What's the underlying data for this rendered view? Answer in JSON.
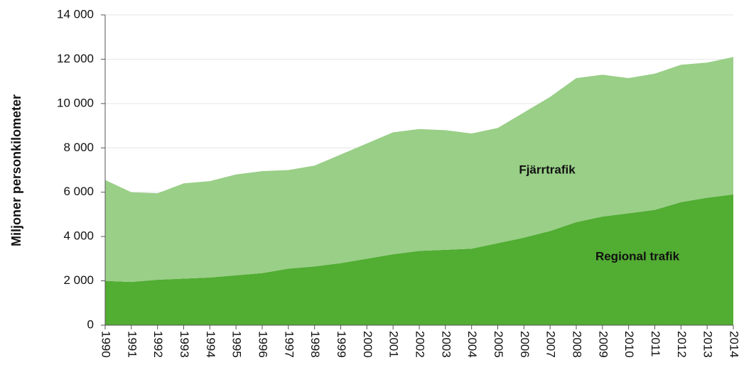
{
  "chart_data": {
    "type": "stacked-area",
    "y_label": "Miljoner personkilometer",
    "categories": [
      "1990",
      "1991",
      "1992",
      "1993",
      "1994",
      "1995",
      "1996",
      "1997",
      "1998",
      "1999",
      "2000",
      "2001",
      "2002",
      "2003",
      "2004",
      "2005",
      "2006",
      "2007",
      "2008",
      "2009",
      "2010",
      "2011",
      "2012",
      "2013",
      "2014"
    ],
    "series": [
      {
        "name": "Regional trafik",
        "color": "#52ad33",
        "values": [
          2000,
          1950,
          2050,
          2100,
          2150,
          2250,
          2350,
          2550,
          2650,
          2800,
          3000,
          3200,
          3350,
          3400,
          3450,
          3700,
          3950,
          4250,
          4650,
          4900,
          5050,
          5200,
          5550,
          5750,
          5900
        ]
      },
      {
        "name": "Fjärrtrafik",
        "color": "#99cf87",
        "values": [
          4550,
          4050,
          3900,
          4300,
          4350,
          4550,
          4600,
          4450,
          4550,
          4900,
          5200,
          5500,
          5500,
          5400,
          5200,
          5200,
          5650,
          6050,
          6500,
          6400,
          6100,
          6150,
          6200,
          6100,
          6200
        ]
      }
    ],
    "ylim": [
      0,
      14000
    ],
    "yticks": [
      0,
      {
        "value": 2000,
        "label": "2 000"
      },
      {
        "value": 4000,
        "label": "4 000"
      },
      {
        "value": 6000,
        "label": "6 000"
      },
      {
        "value": 8000,
        "label": "8 000"
      },
      {
        "value": 10000,
        "label": "10 000"
      },
      {
        "value": 12000,
        "label": "12 000"
      },
      {
        "value": 14000,
        "label": "14 000"
      }
    ],
    "grid": true
  }
}
